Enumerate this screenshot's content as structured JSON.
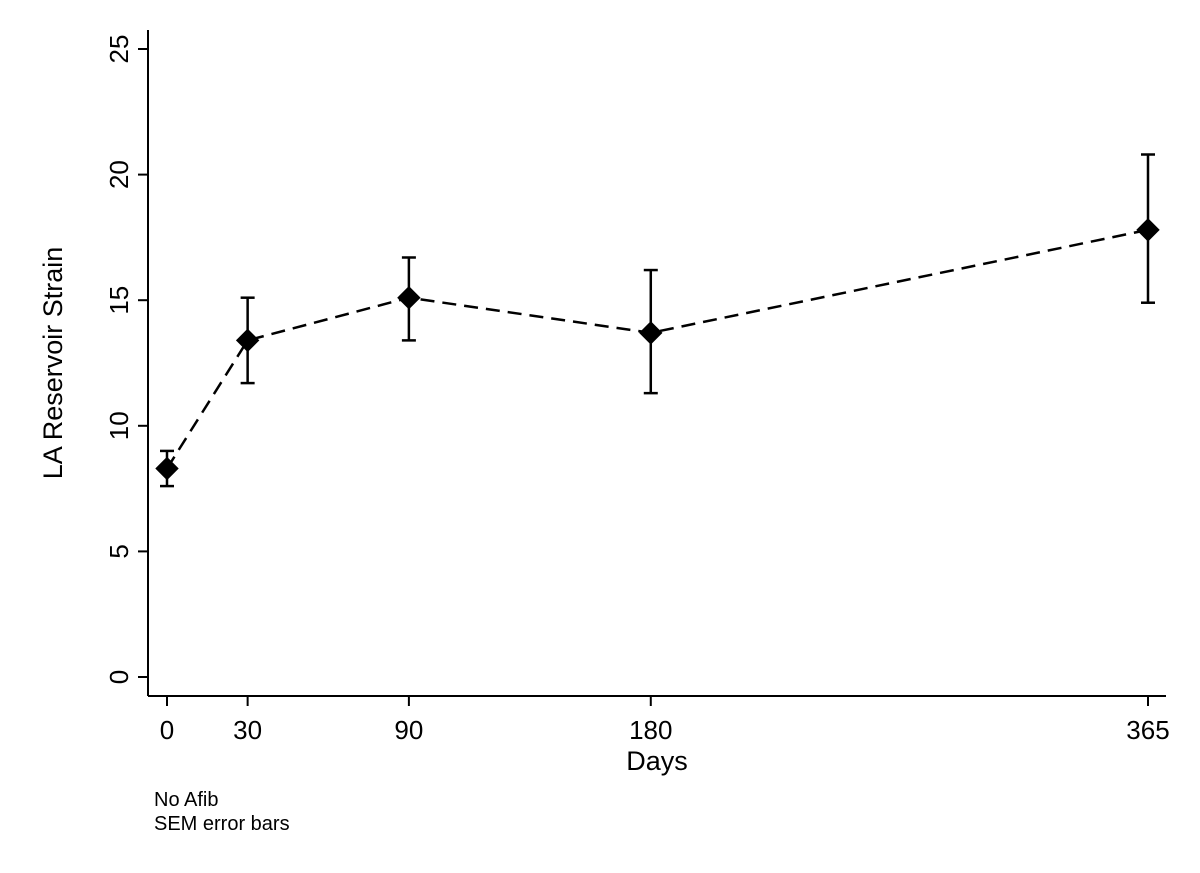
{
  "chart_data": {
    "type": "line",
    "title": "",
    "xlabel": "Days",
    "ylabel": "LA Reservoir Strain",
    "x": [
      0,
      30,
      90,
      180,
      365
    ],
    "xticks": [
      0,
      30,
      90,
      180,
      365
    ],
    "xtick_labels": [
      "0",
      "30",
      "90",
      "180",
      "365"
    ],
    "yticks": [
      0,
      5,
      10,
      15,
      20,
      25
    ],
    "ytick_labels": [
      "0",
      "5",
      "10",
      "15",
      "20",
      "25"
    ],
    "xlim": [
      -7,
      365
    ],
    "ylim": [
      0,
      25
    ],
    "grid": false,
    "series": [
      {
        "name": "No Afib",
        "values": [
          8.3,
          13.4,
          15.1,
          13.7,
          17.8
        ],
        "error_low": [
          7.6,
          11.7,
          13.4,
          11.3,
          14.9
        ],
        "error_high": [
          9.0,
          15.1,
          16.7,
          16.2,
          20.8
        ],
        "marker": "diamond",
        "line_style": "dashed",
        "color": "#000000"
      }
    ],
    "notes": [
      "No Afib",
      "SEM error bars"
    ]
  }
}
